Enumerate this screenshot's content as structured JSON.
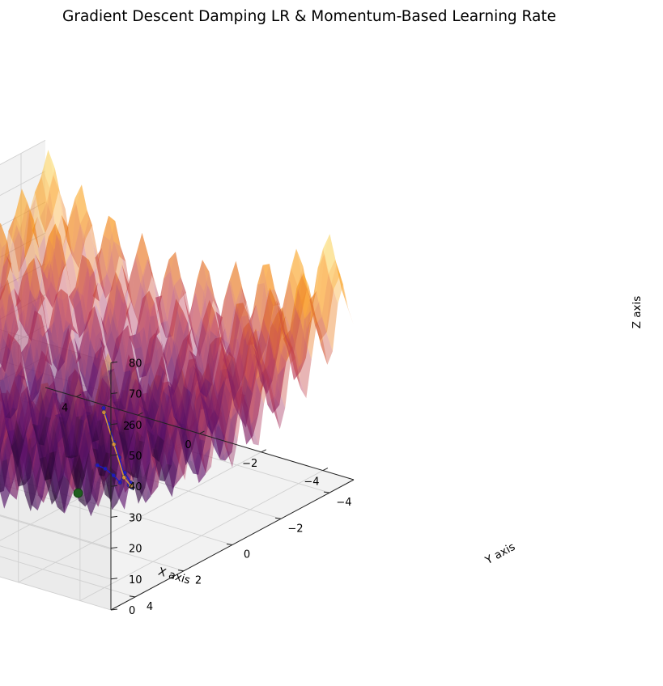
{
  "chart_data": {
    "type": "surface3d",
    "title": "Gradient Descent Damping LR & Momentum-Based Learning Rate",
    "xlabel": "X axis",
    "ylabel": "Y axis",
    "zlabel": "Z axis",
    "xlim": [
      -5,
      5
    ],
    "ylim": [
      -5,
      5
    ],
    "zlim": [
      0,
      80
    ],
    "x_ticks": [
      -4,
      -2,
      0,
      2,
      4
    ],
    "y_ticks": [
      -4,
      -2,
      0,
      2,
      4
    ],
    "z_ticks": [
      0,
      10,
      20,
      30,
      40,
      50,
      60,
      70,
      80
    ],
    "x_tick_labels": [
      "−4",
      "−2",
      "0",
      "2",
      "4"
    ],
    "y_tick_labels": [
      "−4",
      "−2",
      "0",
      "2",
      "4"
    ],
    "z_tick_labels": [
      "0",
      "10",
      "20",
      "30",
      "40",
      "50",
      "60",
      "70",
      "80"
    ],
    "surface": {
      "function": "rastrigin",
      "colormap": "inferno",
      "alpha": 0.4
    },
    "grid": true,
    "series": [
      {
        "color": "#1a1acc",
        "x": [
          -4.45,
          -4.33,
          -4.2,
          -4.05,
          -3.9,
          -3.78,
          -3.68,
          -3.6,
          -3.56,
          -3.6,
          -3.55,
          -3.48,
          -3.42
        ],
        "y": [
          4.6,
          4.25,
          3.85,
          3.45,
          3.05,
          2.7,
          2.45,
          2.4,
          2.6,
          2.85,
          3.05,
          3.3,
          3.55
        ],
        "z": [
          62,
          55,
          47,
          40,
          32,
          27,
          25,
          26,
          30,
          28,
          31,
          34,
          36
        ]
      },
      {
        "color": "#e8a030",
        "x": [
          -4.38,
          -4.15,
          -3.85,
          -3.6
        ],
        "y": [
          4.5,
          3.8,
          3.0,
          2.4
        ],
        "z": [
          60,
          46,
          31,
          25
        ]
      }
    ],
    "minimum_marker": {
      "x": 0,
      "y": 0,
      "z": 0,
      "color": "#1f5e1f"
    }
  }
}
